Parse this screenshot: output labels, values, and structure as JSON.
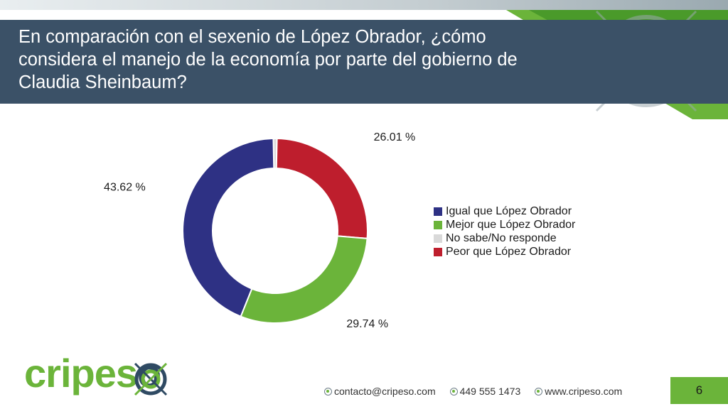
{
  "slide": {
    "title": "En comparación con el sexenio de López Obrador, ¿cómo considera el manejo de la economía por parte del gobierno de Claudia Sheinbaum?",
    "page_number": "6"
  },
  "chart_data": {
    "type": "pie",
    "style": "donut",
    "title": "En comparación con el sexenio de López Obrador, ¿cómo considera el manejo de la economía por parte del gobierno de Claudia Sheinbaum?",
    "categories": [
      "Igual que López Obrador",
      "Mejor que López Obrador",
      "No sabe/No responde",
      "Peor que López Obrador"
    ],
    "values": [
      43.62,
      29.74,
      0.63,
      26.01
    ],
    "data_labels": [
      "43.62 %",
      "29.74 %",
      "",
      "26.01 %"
    ],
    "colors": [
      "#2e3184",
      "#6bb43a",
      "#d9d9d9",
      "#be1e2d"
    ],
    "legend_position": "right"
  },
  "brand": {
    "logo_part1": "cripes",
    "logo_part2": "o",
    "colors": {
      "green": "#6bb43a",
      "navy": "#3b5167"
    }
  },
  "footer": {
    "email": "contacto@cripeso.com",
    "phone": "449 555 1473",
    "website": "www.cripeso.com"
  }
}
